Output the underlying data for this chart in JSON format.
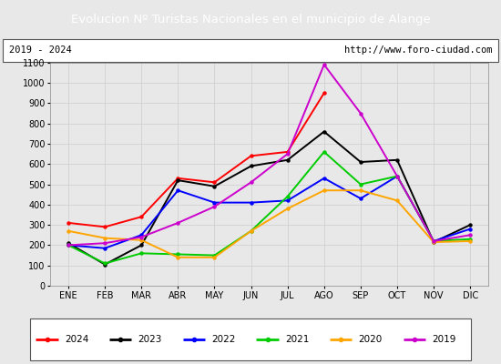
{
  "title": "Evolucion Nº Turistas Nacionales en el municipio de Alange",
  "subtitle_left": "2019 - 2024",
  "subtitle_right": "http://www.foro-ciudad.com",
  "title_bg_color": "#4472c4",
  "title_text_color": "#ffffff",
  "months": [
    "ENE",
    "FEB",
    "MAR",
    "ABR",
    "MAY",
    "JUN",
    "JUL",
    "AGO",
    "SEP",
    "OCT",
    "NOV",
    "DIC"
  ],
  "ylim": [
    0,
    1100
  ],
  "yticks": [
    0,
    100,
    200,
    300,
    400,
    500,
    600,
    700,
    800,
    900,
    1000,
    1100
  ],
  "series": {
    "2024": {
      "color": "#ff0000",
      "data": [
        310,
        290,
        340,
        530,
        510,
        640,
        660,
        950,
        null,
        null,
        null,
        null
      ]
    },
    "2023": {
      "color": "#000000",
      "data": [
        210,
        105,
        200,
        520,
        490,
        590,
        620,
        760,
        610,
        620,
        215,
        300
      ]
    },
    "2022": {
      "color": "#0000ff",
      "data": [
        200,
        185,
        250,
        470,
        410,
        410,
        420,
        530,
        430,
        540,
        220,
        280
      ]
    },
    "2021": {
      "color": "#00cc00",
      "data": [
        200,
        110,
        160,
        155,
        150,
        270,
        440,
        660,
        500,
        540,
        220,
        230
      ]
    },
    "2020": {
      "color": "#ffa500",
      "data": [
        270,
        235,
        225,
        140,
        140,
        270,
        380,
        470,
        470,
        420,
        215,
        220
      ]
    },
    "2019": {
      "color": "#cc00cc",
      "data": [
        200,
        210,
        240,
        310,
        390,
        510,
        650,
        1090,
        850,
        540,
        220,
        250
      ]
    }
  },
  "legend_order": [
    "2024",
    "2023",
    "2022",
    "2021",
    "2020",
    "2019"
  ],
  "grid_color": "#cccccc",
  "fig_bg_color": "#e8e8e8",
  "plot_bg_color": "#e8e8e8"
}
